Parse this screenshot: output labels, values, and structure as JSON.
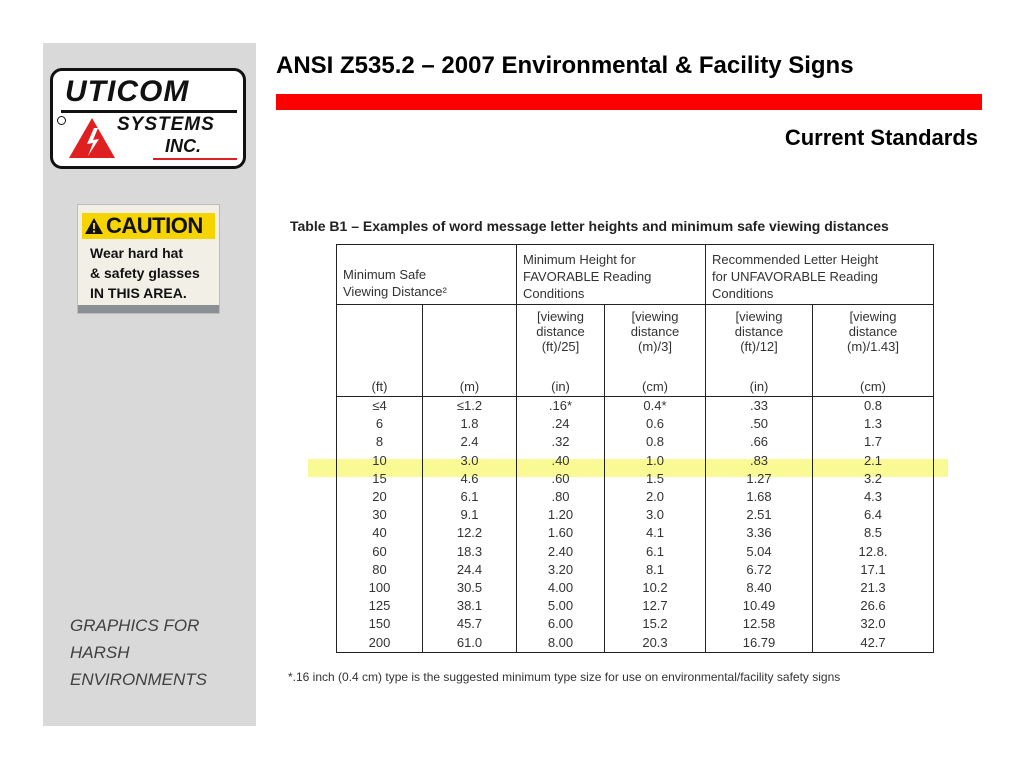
{
  "slide": {
    "title": "ANSI Z535.2 – 2007 Environmental & Facility Signs",
    "subtitle": "Current Standards",
    "accent_color": "#ff0000"
  },
  "sidebar": {
    "caption": "GRAPHICS FOR HARSH ENVIRONMENTS",
    "logo": {
      "line1": "UTICOM",
      "line2": "SYSTEMS",
      "line3": "INC."
    },
    "caution_sign": {
      "title": "CAUTION",
      "lines": [
        "Wear hard hat",
        "& safety glasses",
        "IN THIS AREA."
      ]
    }
  },
  "table": {
    "caption": "Table B1 – Examples of word message letter heights and minimum safe viewing distances",
    "groups": {
      "distance": [
        "Minimum Safe",
        "Viewing Distance²"
      ],
      "favorable": [
        "Minimum Height for",
        "FAVORABLE Reading",
        "Conditions"
      ],
      "unfavorable": [
        "Recommended Letter Height",
        "for UNFAVORABLE Reading",
        "Conditions"
      ]
    },
    "formulas": [
      [
        "[viewing",
        "distance",
        "(ft)/25]"
      ],
      [
        "[viewing",
        "distance",
        "(m)/3]"
      ],
      [
        "[viewing",
        "distance",
        "(ft)/12]"
      ],
      [
        "[viewing",
        "distance",
        "(m)/1.43]"
      ]
    ],
    "units": [
      "(ft)",
      "(m)",
      "(in)",
      "(cm)",
      "(in)",
      "(cm)"
    ],
    "columns": {
      "ft": [
        "≤4",
        "6",
        "8",
        "10",
        "15",
        "20",
        "30",
        "40",
        "60",
        "80",
        "100",
        "125",
        "150",
        "200"
      ],
      "m": [
        "≤1.2",
        "1.8",
        "2.4",
        "3.0",
        "4.6",
        "6.1",
        "9.1",
        "12.2",
        "18.3",
        "24.4",
        "30.5",
        "38.1",
        "45.7",
        "61.0"
      ],
      "fav_in": [
        ".16*",
        ".24",
        ".32",
        ".40",
        ".60",
        ".80",
        "1.20",
        "1.60",
        "2.40",
        "3.20",
        "4.00",
        "5.00",
        "6.00",
        "8.00"
      ],
      "fav_cm": [
        "0.4*",
        "0.6",
        "0.8",
        "1.0",
        "1.5",
        "2.0",
        "3.0",
        "4.1",
        "6.1",
        "8.1",
        "10.2",
        "12.7",
        "15.2",
        "20.3"
      ],
      "unfav_in": [
        ".33",
        ".50",
        ".66",
        ".83",
        "1.27",
        "1.68",
        "2.51",
        "3.36",
        "5.04",
        "6.72",
        "8.40",
        "10.49",
        "12.58",
        "16.79"
      ],
      "unfav_cm": [
        "0.8",
        "1.3",
        "1.7",
        "2.1",
        "3.2",
        "4.3",
        "6.4",
        "8.5",
        "12.8.",
        "17.1",
        "21.3",
        "26.6",
        "32.0",
        "42.7"
      ]
    },
    "highlight_color": "#f6f63c",
    "footnote": "*.16 inch (0.4 cm) type is the suggested minimum type size for use on environmental/facility safety signs"
  }
}
